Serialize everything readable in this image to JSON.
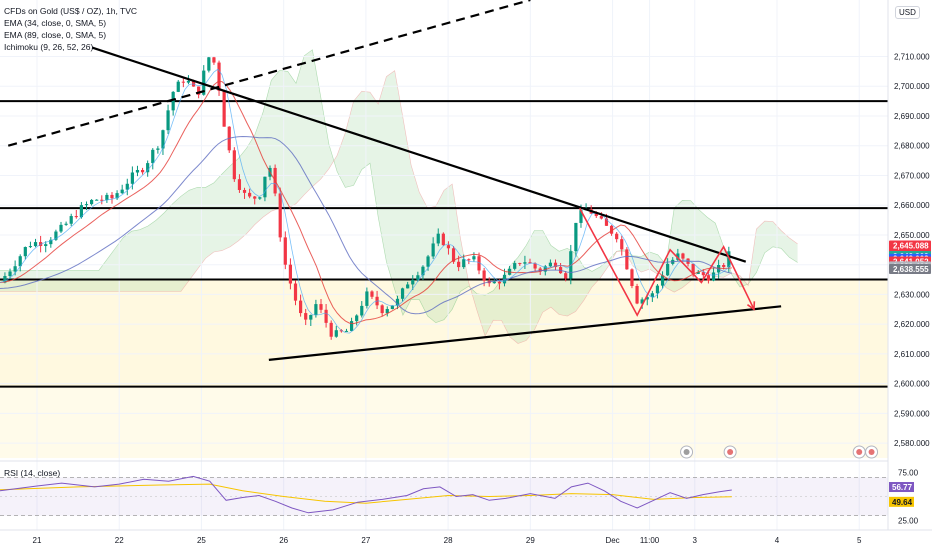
{
  "chart_data": {
    "type": "candlestick",
    "instrument": "CFDs on Gold (US$ / OZ), 1h, TVC",
    "indicators": [
      "EMA (34, close, 0, SMA, 5)",
      "EMA (89, close, 0, SMA, 5)",
      "Ichimoku (9, 26, 52, 26)"
    ],
    "currency": "USD",
    "price_axis": {
      "range": [
        2575,
        2729
      ],
      "ticks": [
        "2,710.000",
        "2,700.000",
        "2,690.000",
        "2,680.000",
        "2,670.000",
        "2,660.000",
        "2,650.000",
        "2,640.000",
        "2,630.000",
        "2,620.000",
        "2,610.000",
        "2,600.000",
        "2,590.000",
        "2,580.000"
      ],
      "tick_values": [
        2710,
        2700,
        2690,
        2680,
        2670,
        2660,
        2650,
        2640,
        2630,
        2620,
        2610,
        2600,
        2590,
        2580
      ]
    },
    "time_axis": {
      "labels": [
        "21",
        "22",
        "25",
        "26",
        "27",
        "28",
        "29",
        "Dec",
        "11:00",
        "3",
        "4",
        "5"
      ],
      "positions": [
        0,
        1,
        2,
        3,
        4,
        5,
        6,
        7,
        7.45,
        8,
        9,
        10
      ],
      "range": [
        -0.45,
        10.35
      ]
    },
    "price_labels": [
      {
        "value": "2,645.088",
        "sub": "17:40",
        "y": 2645.088,
        "color": "#f23645"
      },
      {
        "value": "2,642.909",
        "y": 2642.909,
        "color": "#22ab94"
      },
      {
        "value": "2,642.003",
        "y": 2642.003,
        "color": "#2962ff"
      },
      {
        "value": "2,641.052",
        "y": 2641.052,
        "color": "#f23645"
      },
      {
        "value": "2,639.413",
        "y": 2639.413,
        "color": "#b2b5be"
      },
      {
        "value": "2,638.555",
        "y": 2638.555,
        "color": "#787b86"
      }
    ],
    "horizontal_levels": [
      2695,
      2659,
      2635,
      2599
    ],
    "trendlines": [
      {
        "style": "solid",
        "from": [
          0.67,
          2713
        ],
        "to": [
          8.62,
          2641
        ]
      },
      {
        "style": "solid",
        "from": [
          2.82,
          2608
        ],
        "to": [
          9.05,
          2626
        ]
      },
      {
        "style": "dashed",
        "from": [
          -0.35,
          2680
        ],
        "to": [
          6.0,
          2729
        ]
      }
    ],
    "zigzag_red": [
      [
        6.6,
        2659
      ],
      [
        7.3,
        2623
      ],
      [
        7.7,
        2645
      ],
      [
        8.08,
        2634
      ],
      [
        8.35,
        2646
      ],
      [
        8.72,
        2625
      ]
    ],
    "candles_close_path": [
      [
        -0.45,
        2634
      ],
      [
        -0.1,
        2647
      ],
      [
        0.1,
        2648
      ],
      [
        0.3,
        2652
      ],
      [
        0.5,
        2658
      ],
      [
        0.7,
        2662
      ],
      [
        0.9,
        2662
      ],
      [
        1.1,
        2668
      ],
      [
        1.3,
        2673
      ],
      [
        1.5,
        2682
      ],
      [
        1.65,
        2698
      ],
      [
        1.8,
        2703
      ],
      [
        1.95,
        2697
      ],
      [
        2.08,
        2709
      ],
      [
        2.12,
        2712
      ],
      [
        2.2,
        2702
      ],
      [
        2.3,
        2683
      ],
      [
        2.4,
        2670
      ],
      [
        2.55,
        2662
      ],
      [
        2.7,
        2663
      ],
      [
        2.82,
        2675
      ],
      [
        2.9,
        2662
      ],
      [
        3.0,
        2642
      ],
      [
        3.1,
        2632
      ],
      [
        3.25,
        2619
      ],
      [
        3.4,
        2627
      ],
      [
        3.6,
        2616
      ],
      [
        3.8,
        2618
      ],
      [
        4.0,
        2630
      ],
      [
        4.2,
        2625
      ],
      [
        4.4,
        2628
      ],
      [
        4.5,
        2634
      ],
      [
        4.7,
        2640
      ],
      [
        4.9,
        2650
      ],
      [
        5.0,
        2645
      ],
      [
        5.1,
        2640
      ],
      [
        5.3,
        2642
      ],
      [
        5.5,
        2633
      ],
      [
        5.7,
        2636
      ],
      [
        5.9,
        2642
      ],
      [
        6.1,
        2638
      ],
      [
        6.3,
        2641
      ],
      [
        6.45,
        2636
      ],
      [
        6.55,
        2655
      ],
      [
        6.7,
        2659
      ],
      [
        6.9,
        2653
      ],
      [
        7.05,
        2650
      ],
      [
        7.15,
        2642
      ],
      [
        7.3,
        2628
      ],
      [
        7.5,
        2630
      ],
      [
        7.65,
        2640
      ],
      [
        7.8,
        2643
      ],
      [
        8.0,
        2637
      ],
      [
        8.2,
        2636
      ],
      [
        8.35,
        2640
      ],
      [
        8.45,
        2645
      ]
    ],
    "rsi": {
      "label": "RSI (14, close)",
      "range": [
        15,
        85
      ],
      "ticks": [
        "75.00",
        "25.00"
      ],
      "tick_values": [
        75,
        25
      ],
      "band": [
        30,
        70
      ],
      "last_values": [
        {
          "value": "56.77",
          "color": "#7e57c2"
        },
        {
          "value": "49.64",
          "color": "#f7c500"
        }
      ],
      "rsi_series": [
        [
          -0.45,
          56
        ],
        [
          0,
          61
        ],
        [
          0.3,
          64
        ],
        [
          0.7,
          60
        ],
        [
          1.0,
          63
        ],
        [
          1.3,
          68
        ],
        [
          1.6,
          66
        ],
        [
          1.9,
          71
        ],
        [
          2.1,
          66
        ],
        [
          2.3,
          46
        ],
        [
          2.5,
          49
        ],
        [
          2.7,
          51
        ],
        [
          2.9,
          45
        ],
        [
          3.1,
          38
        ],
        [
          3.3,
          33
        ],
        [
          3.6,
          36
        ],
        [
          3.9,
          44
        ],
        [
          4.2,
          47
        ],
        [
          4.5,
          51
        ],
        [
          4.7,
          58
        ],
        [
          4.9,
          60
        ],
        [
          5.1,
          50
        ],
        [
          5.3,
          52
        ],
        [
          5.5,
          46
        ],
        [
          5.7,
          48
        ],
        [
          6.0,
          53
        ],
        [
          6.3,
          48
        ],
        [
          6.5,
          60
        ],
        [
          6.7,
          64
        ],
        [
          6.9,
          56
        ],
        [
          7.1,
          45
        ],
        [
          7.3,
          38
        ],
        [
          7.5,
          46
        ],
        [
          7.7,
          54
        ],
        [
          7.9,
          48
        ],
        [
          8.1,
          52
        ],
        [
          8.3,
          55
        ],
        [
          8.45,
          56.77
        ]
      ],
      "ma_series": [
        [
          -0.45,
          57
        ],
        [
          0.5,
          60
        ],
        [
          1.5,
          62
        ],
        [
          2.1,
          63
        ],
        [
          2.5,
          56
        ],
        [
          3.0,
          50
        ],
        [
          3.5,
          45
        ],
        [
          4.0,
          43
        ],
        [
          4.5,
          47
        ],
        [
          5.0,
          51
        ],
        [
          5.5,
          50
        ],
        [
          6.0,
          51
        ],
        [
          6.5,
          53
        ],
        [
          7.0,
          52
        ],
        [
          7.5,
          47
        ],
        [
          8.0,
          49
        ],
        [
          8.45,
          49.64
        ]
      ]
    }
  }
}
